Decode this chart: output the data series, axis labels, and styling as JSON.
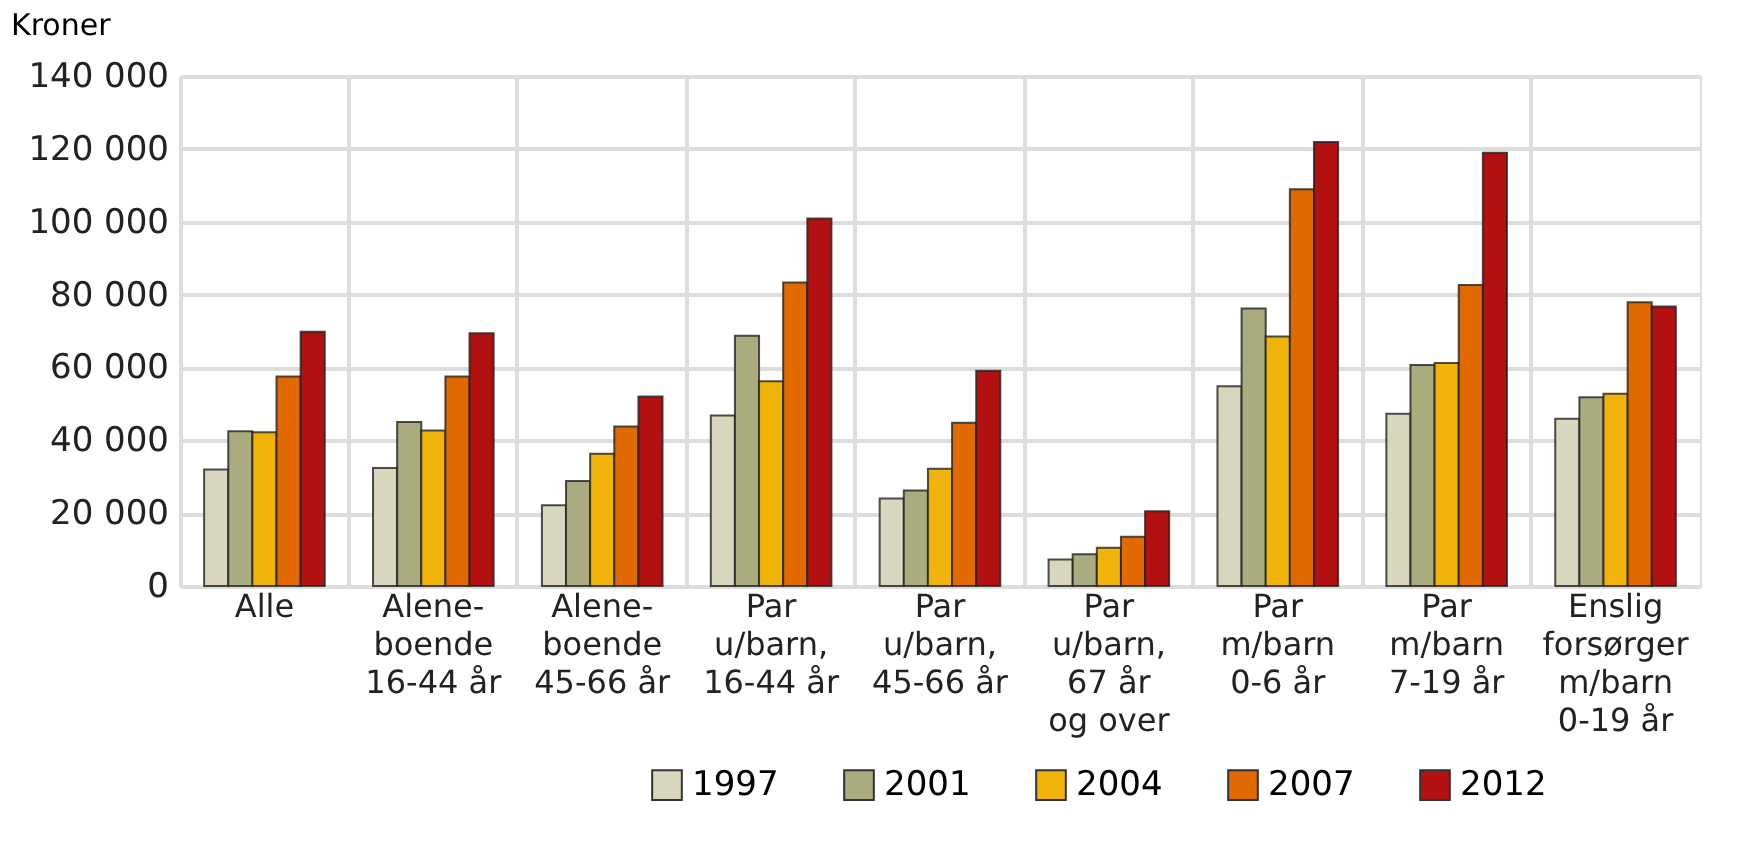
{
  "chart_data": {
    "type": "bar",
    "ylabel": "Kroner",
    "categories": [
      "Alle",
      "Alene-\nboende\n16-44 år",
      "Alene-\nboende\n45-66 år",
      "Par\nu/barn,\n16-44 år",
      "Par\nu/barn,\n45-66 år",
      "Par\nu/barn,\n67 år\nog over",
      "Par\nm/barn\n0-6 år",
      "Par\nm/barn\n7-19 år",
      "Enslig\nforsørger\nm/barn\n0-19 år"
    ],
    "series": [
      {
        "name": "1997",
        "color": "#d8d6bc",
        "values": [
          32000,
          32400,
          22200,
          46800,
          24000,
          7300,
          54800,
          47300,
          45900
        ]
      },
      {
        "name": "2001",
        "color": "#aaab7f",
        "values": [
          42500,
          45000,
          28800,
          68700,
          26200,
          8700,
          76200,
          60700,
          51800
        ]
      },
      {
        "name": "2004",
        "color": "#f0b30a",
        "values": [
          42200,
          42700,
          36300,
          56200,
          32200,
          10500,
          68500,
          61200,
          52800
        ]
      },
      {
        "name": "2007",
        "color": "#e06a00",
        "values": [
          57500,
          57500,
          43800,
          83300,
          44800,
          13500,
          108900,
          82600,
          77900
        ]
      },
      {
        "name": "2012",
        "color": "#b31111",
        "values": [
          69800,
          69400,
          52000,
          100900,
          59100,
          20500,
          121900,
          118900,
          76700
        ]
      }
    ],
    "ylim": [
      0,
      140000
    ],
    "yticks": [
      0,
      {
        "value": 20000,
        "label": "20 000"
      },
      {
        "value": 40000,
        "label": "40 000"
      },
      {
        "value": 60000,
        "label": "60 000"
      },
      {
        "value": 80000,
        "label": "80 000"
      },
      {
        "value": 100000,
        "label": "100 000"
      },
      {
        "value": 120000,
        "label": "120 000"
      },
      {
        "value": 140000,
        "label": "140 000"
      }
    ],
    "grid": true,
    "legend": "bottom"
  }
}
